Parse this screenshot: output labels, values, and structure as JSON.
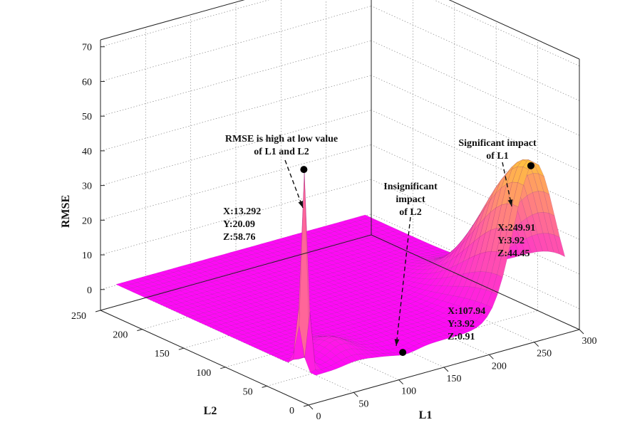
{
  "chart_data": {
    "type": "surface",
    "xlabel": "L1",
    "ylabel": "L2",
    "zlabel": "RMSE",
    "xlim": [
      0,
      300
    ],
    "ylim": [
      0,
      250
    ],
    "zlim": [
      0,
      70
    ],
    "x_ticks": [
      "0",
      "50",
      "100",
      "150",
      "200",
      "250",
      "300"
    ],
    "y_ticks": [
      "0",
      "50",
      "100",
      "150",
      "200",
      "250"
    ],
    "z_ticks": [
      "0",
      "10",
      "20",
      "30",
      "40",
      "50",
      "60",
      "70"
    ],
    "grid": true,
    "colormap": "spring",
    "colors": {
      "low": "#ff00ff",
      "high": "#ffff00"
    },
    "points": [
      {
        "name": "rmse-high-point",
        "x": 13.292,
        "y": 20.09,
        "z": 58.76,
        "label_lines": [
          "X:13.292",
          "Y:20.09",
          "Z:58.76"
        ]
      },
      {
        "name": "insignificant-point",
        "x": 107.94,
        "y": 3.92,
        "z": 0.91,
        "label_lines": [
          "X:107.94",
          "Y:3.92",
          "Z:0.91"
        ]
      },
      {
        "name": "significant-point",
        "x": 249.91,
        "y": 3.92,
        "z": 44.45,
        "label_lines": [
          "X:249.91",
          "Y:3.92",
          "Z:44.45"
        ]
      }
    ],
    "annotations": [
      {
        "name": "annotation-rmse-high",
        "lines": [
          "RMSE  is high at low value",
          "of L1 and L2"
        ]
      },
      {
        "name": "annotation-insignificant",
        "lines": [
          "Insignificant",
          "impact",
          "of L2"
        ]
      },
      {
        "name": "annotation-significant",
        "lines": [
          "Significant impact",
          "of L1"
        ]
      }
    ]
  }
}
